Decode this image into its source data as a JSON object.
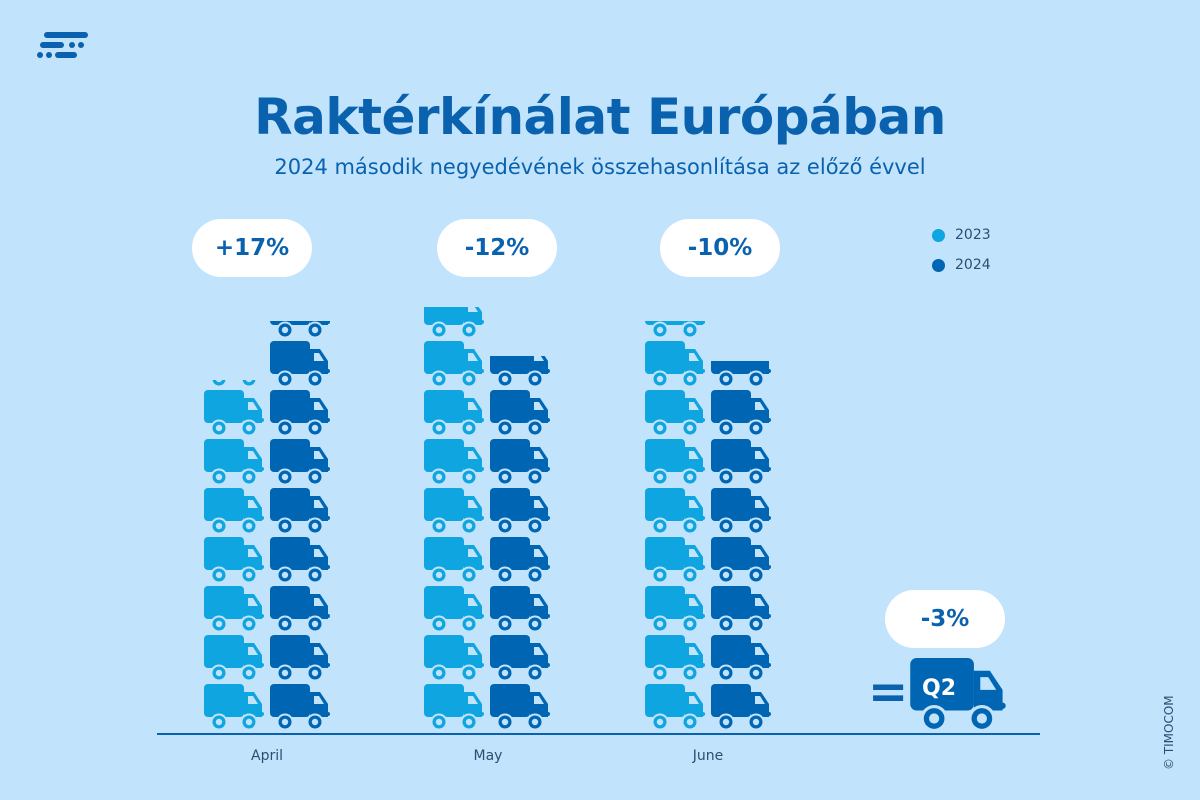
{
  "title": "Raktérkínálat Európában",
  "subtitle": "2024 második negyedévének összehasonlítása az előző évvel",
  "copyright": "© TIMOCOM",
  "logo": "timocom-logo",
  "colors": {
    "background": "#c1e3fb",
    "2023": "#0ea5e0",
    "2024": "#0065b3",
    "text": "#0a62ae"
  },
  "chart_data": {
    "type": "bar",
    "style": "pictogram (stacked truck icons)",
    "categories": [
      "April",
      "May",
      "June"
    ],
    "series": [
      {
        "name": "2023",
        "values": [
          7.2,
          8.7,
          8.4
        ]
      },
      {
        "name": "2024",
        "values": [
          8.4,
          7.7,
          7.6
        ]
      }
    ],
    "changes": [
      "+17%",
      "-12%",
      "-10%"
    ],
    "summary": {
      "label": "Q2",
      "change": "-3%",
      "equals": "="
    },
    "legend": [
      "2023",
      "2024"
    ],
    "legend_position": "top-right",
    "grid": false
  }
}
